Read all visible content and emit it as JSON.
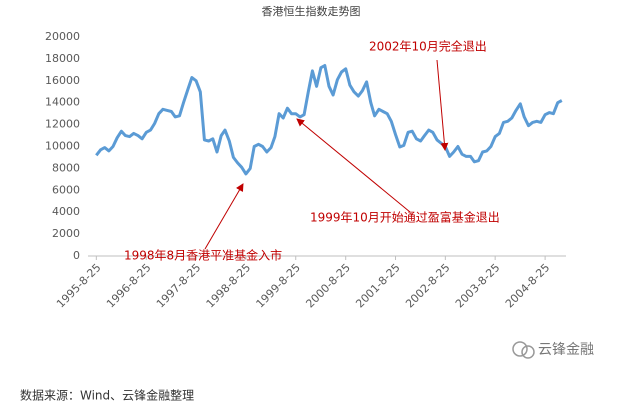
{
  "chart_data": {
    "type": "line",
    "title": "香港恒生指数走势图",
    "x": [
      "1995-8-25",
      "1995-9-25",
      "1995-10-25",
      "1995-11-25",
      "1995-12-25",
      "1996-1-25",
      "1996-2-25",
      "1996-3-25",
      "1996-4-25",
      "1996-5-25",
      "1996-6-25",
      "1996-7-25",
      "1996-8-25",
      "1996-9-25",
      "1996-10-25",
      "1996-11-25",
      "1996-12-25",
      "1997-1-25",
      "1997-2-25",
      "1997-3-25",
      "1997-4-25",
      "1997-5-25",
      "1997-6-25",
      "1997-7-25",
      "1997-8-25",
      "1997-9-25",
      "1997-10-25",
      "1997-11-25",
      "1997-12-25",
      "1998-1-25",
      "1998-2-25",
      "1998-3-25",
      "1998-4-25",
      "1998-5-25",
      "1998-6-25",
      "1998-7-25",
      "1998-8-25",
      "1998-9-25",
      "1998-10-25",
      "1998-11-25",
      "1998-12-25",
      "1999-1-25",
      "1999-2-25",
      "1999-3-25",
      "1999-4-25",
      "1999-5-25",
      "1999-6-25",
      "1999-7-25",
      "1999-8-25",
      "1999-9-25",
      "1999-10-25",
      "1999-11-25",
      "1999-12-25",
      "2000-1-25",
      "2000-2-25",
      "2000-3-25",
      "2000-4-25",
      "2000-5-25",
      "2000-6-25",
      "2000-7-25",
      "2000-8-25",
      "2000-9-25",
      "2000-10-25",
      "2000-11-25",
      "2000-12-25",
      "2001-1-25",
      "2001-2-25",
      "2001-3-25",
      "2001-4-25",
      "2001-5-25",
      "2001-6-25",
      "2001-7-25",
      "2001-8-25",
      "2001-9-25",
      "2001-10-25",
      "2001-11-25",
      "2001-12-25",
      "2002-1-25",
      "2002-2-25",
      "2002-3-25",
      "2002-4-25",
      "2002-5-25",
      "2002-6-25",
      "2002-7-25",
      "2002-8-25",
      "2002-9-25",
      "2002-10-25",
      "2002-11-25",
      "2002-12-25",
      "2003-1-25",
      "2003-2-25",
      "2003-3-25",
      "2003-4-25",
      "2003-5-25",
      "2003-6-25",
      "2003-7-25",
      "2003-8-25",
      "2003-9-25",
      "2003-10-25",
      "2003-11-25",
      "2003-12-25",
      "2004-1-25",
      "2004-2-25",
      "2004-3-25",
      "2004-4-25",
      "2004-5-25",
      "2004-6-25",
      "2004-7-25",
      "2004-8-25",
      "2004-9-25",
      "2004-10-25",
      "2004-11-25",
      "2004-12-25"
    ],
    "series": [
      {
        "name": "恒生指数",
        "color": "#5b9bd5",
        "values": [
          9200,
          9700,
          9900,
          9600,
          10000,
          10800,
          11400,
          11000,
          10900,
          11200,
          11000,
          10700,
          11300,
          11500,
          12100,
          13000,
          13400,
          13300,
          13200,
          12700,
          12800,
          14000,
          15200,
          16300,
          16000,
          15000,
          10600,
          10500,
          10700,
          9500,
          11000,
          11500,
          10500,
          9000,
          8500,
          8100,
          7500,
          8000,
          10000,
          10200,
          10000,
          9500,
          9900,
          10900,
          13000,
          12600,
          13500,
          13000,
          13000,
          12700,
          12900,
          15000,
          16900,
          15500,
          17200,
          17400,
          15500,
          14700,
          16100,
          16800,
          17100,
          15600,
          15000,
          14600,
          15100,
          15900,
          14000,
          12800,
          13400,
          13200,
          13000,
          12300,
          11100,
          9950,
          10100,
          11300,
          11400,
          10700,
          10500,
          11000,
          11500,
          11300,
          10600,
          10300,
          10000,
          9100,
          9500,
          10000,
          9300,
          9100,
          9100,
          8600,
          8700,
          9500,
          9600,
          10000,
          10900,
          11200,
          12200,
          12300,
          12600,
          13300,
          13900,
          12700,
          11900,
          12200,
          12300,
          12200,
          12900,
          13100,
          13000,
          14000,
          14200
        ]
      }
    ],
    "xlim": [
      "1995-6-25",
      "2005-1-25"
    ],
    "xticks": [
      "1995-8-25",
      "1996-8-25",
      "1997-8-25",
      "1998-8-25",
      "1999-8-25",
      "2000-8-25",
      "2001-8-25",
      "2002-8-25",
      "2003-8-25",
      "2004-8-25"
    ],
    "ylim": [
      0,
      20000
    ],
    "yticks": [
      0,
      2000,
      4000,
      6000,
      8000,
      10000,
      12000,
      14000,
      16000,
      18000,
      20000
    ],
    "grid": false,
    "annotations": [
      "2002年10月完全退出",
      "1999年10月开始通过盈富基金退出",
      "1998年8月香港平准基金入市"
    ],
    "source": "数据来源：Wind、云锋金融整理",
    "watermark": "云锋金融"
  }
}
